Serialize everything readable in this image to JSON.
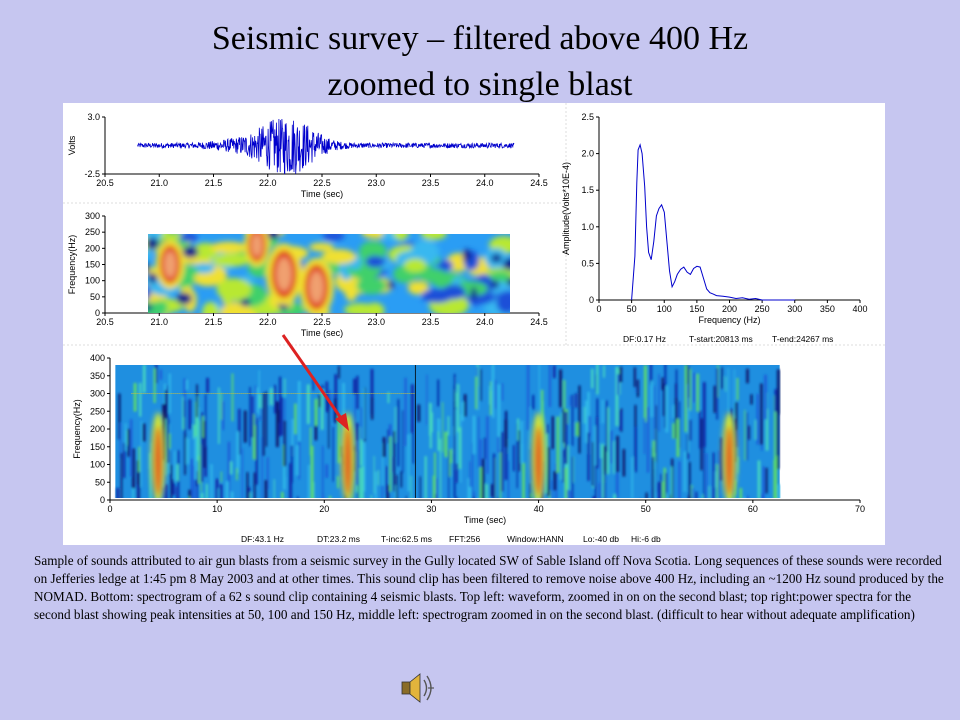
{
  "slide": {
    "title_line1": "Seismic survey – filtered above 400 Hz",
    "title_line2": "zoomed to single blast",
    "caption": "Sample of sounds attributed to air gun blasts from a seismic survey in the Gully located SW of Sable Island off Nova Scotia.  Long sequences of these sounds were recorded on Jefferies ledge at 1:45 pm 8 May 2003 and at other times.  This sound clip has been filtered to remove noise above 400 Hz, including an ~1200 Hz sound produced by the NOMAD.  Bottom: spectrogram of a 62 s sound clip containing 4 seismic blasts.  Top left: waveform, zoomed in on on the second blast; top right:power spectra for the second blast showing peak intensities at 50, 100 and 150 Hz, middle left: spectrogram  zoomed in  on the second blast.  (difficult to hear without adequate amplification)",
    "speaker_icon": "speaker-icon",
    "colors": {
      "background": "#c6c6f0",
      "waveform": "#0000cc",
      "arrow": "#dd2222",
      "spectrum_line": "#0000cc"
    }
  },
  "chart_data": [
    {
      "id": "waveform",
      "type": "line",
      "xlabel": "Time (sec)",
      "ylabel": "Volts",
      "xlim": [
        20.5,
        24.5
      ],
      "ylim": [
        -2.5,
        3.0
      ],
      "xticks": [
        "20.5",
        "21.0",
        "21.5",
        "22.0",
        "22.5",
        "23.0",
        "23.5",
        "24.0",
        "24.5"
      ],
      "yticks": [
        "3.0",
        "-2.5"
      ],
      "signal_span": [
        20.8,
        24.27
      ],
      "peak_time": 22.2,
      "peak_amplitude": 3.0
    },
    {
      "id": "spectrogram-zoomed",
      "type": "heatmap",
      "xlabel": "Time (sec)",
      "ylabel": "Frequency(Hz)",
      "xlim": [
        20.5,
        24.5
      ],
      "ylim": [
        0,
        300
      ],
      "xticks": [
        "20.5",
        "21.0",
        "21.5",
        "22.0",
        "22.5",
        "23.0",
        "23.5",
        "24.0",
        "24.5"
      ],
      "yticks": [
        "0",
        "50",
        "100",
        "150",
        "200",
        "250",
        "300"
      ],
      "data_span": {
        "time": [
          20.8,
          24.27
        ],
        "frequency": [
          0,
          260
        ]
      },
      "hotspots": [
        {
          "time": 22.15,
          "frequency": 120,
          "level": 1.0
        },
        {
          "time": 22.45,
          "frequency": 80,
          "level": 0.95
        },
        {
          "time": 21.1,
          "frequency": 150,
          "level": 0.8
        },
        {
          "time": 21.9,
          "frequency": 210,
          "level": 0.7
        }
      ]
    },
    {
      "id": "power-spectrum",
      "type": "line",
      "xlabel": "Frequency (Hz)",
      "ylabel": "Amplitude(Volts*10E-4)",
      "xlim": [
        0,
        400
      ],
      "ylim": [
        0,
        2.5
      ],
      "xticks": [
        "0",
        "50",
        "100",
        "150",
        "200",
        "250",
        "300",
        "350",
        "400"
      ],
      "yticks": [
        "0",
        "0.5",
        "1.0",
        "1.5",
        "2.0",
        "2.5"
      ],
      "x": [
        50,
        55,
        58,
        60,
        63,
        66,
        70,
        73,
        76,
        80,
        84,
        88,
        92,
        96,
        100,
        104,
        108,
        112,
        116,
        120,
        125,
        130,
        135,
        140,
        145,
        150,
        155,
        160,
        165,
        170,
        175,
        180,
        190,
        200,
        210,
        220,
        230,
        240,
        250,
        260,
        300
      ],
      "y": [
        0,
        0.6,
        1.6,
        2.05,
        2.12,
        2.0,
        1.55,
        1.0,
        0.65,
        0.55,
        0.8,
        1.15,
        1.25,
        1.3,
        1.2,
        0.8,
        0.4,
        0.18,
        0.25,
        0.35,
        0.42,
        0.45,
        0.38,
        0.35,
        0.43,
        0.46,
        0.45,
        0.3,
        0.15,
        0.1,
        0.08,
        0.06,
        0.05,
        0.04,
        0.02,
        0.03,
        0.01,
        0.02,
        0.0,
        0.0,
        0.0
      ],
      "footer": [
        "DF:0.17 Hz",
        "T-start:20813 ms",
        "T-end:24267 ms"
      ]
    },
    {
      "id": "spectrogram-full",
      "type": "heatmap",
      "xlabel": "Time (sec)",
      "ylabel": "Frequency(Hz)",
      "xlim": [
        0,
        70
      ],
      "ylim": [
        0,
        400
      ],
      "xticks": [
        "0",
        "10",
        "20",
        "30",
        "40",
        "50",
        "60",
        "70"
      ],
      "yticks": [
        "0",
        "50",
        "100",
        "150",
        "200",
        "250",
        "300",
        "350",
        "400"
      ],
      "data_span": {
        "time": [
          0.5,
          62.5
        ],
        "frequency": [
          0,
          390
        ]
      },
      "blasts": [
        4.5,
        22.2,
        40.0,
        57.8
      ],
      "footer": [
        "DF:43.1 Hz",
        "DT:23.2 ms",
        "T-inc:62.5 ms",
        "FFT:256",
        "Window:HANN",
        "Lo:-40 db",
        "Hi:-6 db"
      ]
    }
  ]
}
